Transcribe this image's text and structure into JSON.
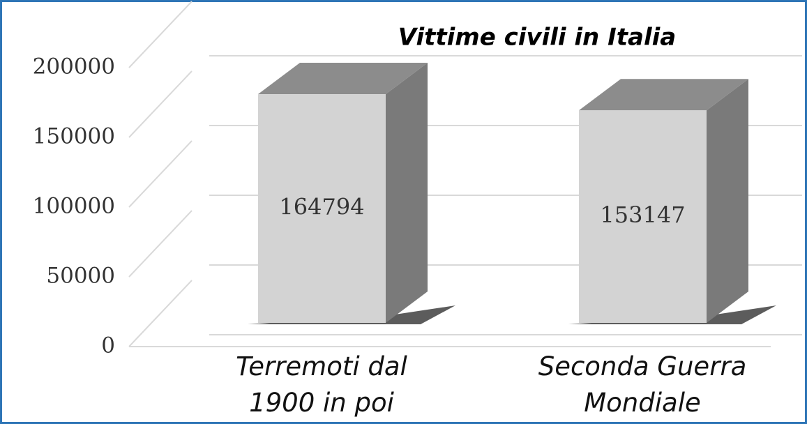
{
  "chart_data": {
    "type": "bar3d",
    "title": "Vittime civili in Italia",
    "categories": [
      "Terremoti dal 1900 in poi",
      "Seconda Guerra Mondiale"
    ],
    "values": [
      164794,
      153147
    ],
    "color": "#d3d3d3",
    "ylim": [
      0,
      200000
    ],
    "yticks": [
      0,
      50000,
      100000,
      150000,
      200000
    ],
    "grid": true
  }
}
